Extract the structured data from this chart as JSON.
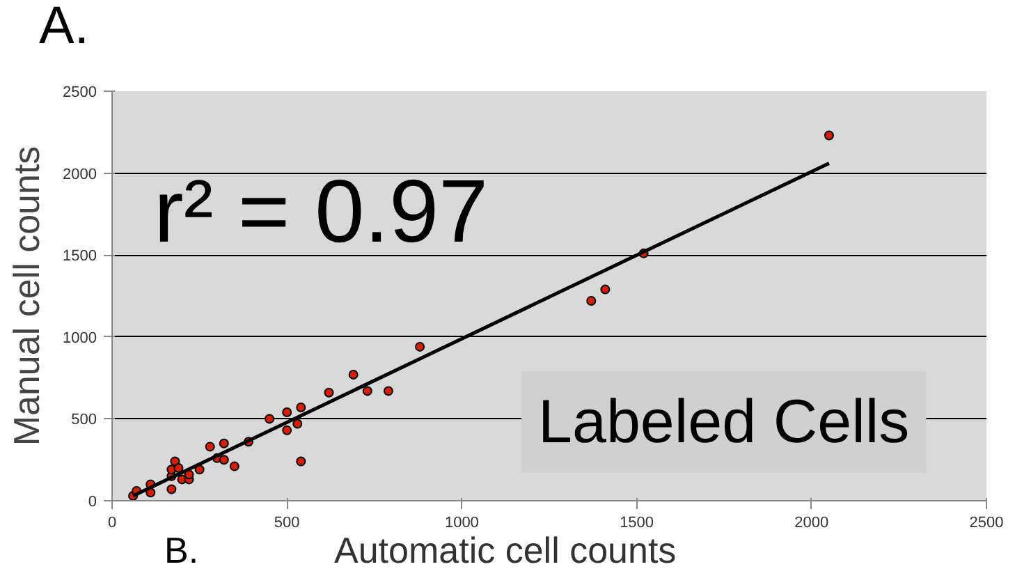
{
  "chart_data": {
    "type": "scatter",
    "xlabel": "Automatic cell counts",
    "ylabel": "Manual cell counts",
    "annotations": [
      "A.",
      "r² = 0.97",
      "Labeled Cells",
      "B."
    ],
    "xlim": [
      0,
      2500
    ],
    "ylim": [
      0,
      2500
    ],
    "xticks": [
      0,
      500,
      1000,
      1500,
      2000,
      2500
    ],
    "yticks": [
      0,
      500,
      1000,
      1500,
      2000,
      2500
    ],
    "grid": "y",
    "series": [
      {
        "marker": "circle",
        "color": "#d81e05",
        "x": [
          60,
          70,
          110,
          110,
          170,
          170,
          170,
          180,
          190,
          200,
          220,
          220,
          250,
          280,
          300,
          320,
          320,
          350,
          390,
          450,
          500,
          500,
          530,
          540,
          540,
          620,
          690,
          730,
          790,
          880,
          1370,
          1410,
          1520,
          2050
        ],
        "values": [
          30,
          60,
          100,
          50,
          70,
          150,
          190,
          240,
          200,
          130,
          130,
          160,
          190,
          330,
          260,
          250,
          350,
          210,
          360,
          500,
          430,
          540,
          470,
          570,
          240,
          660,
          770,
          670,
          670,
          940,
          1220,
          1290,
          1510,
          2230
        ]
      },
      {
        "type": "line",
        "color": "#000000",
        "x": [
          60,
          2050
        ],
        "values": [
          30,
          2060
        ]
      }
    ]
  }
}
